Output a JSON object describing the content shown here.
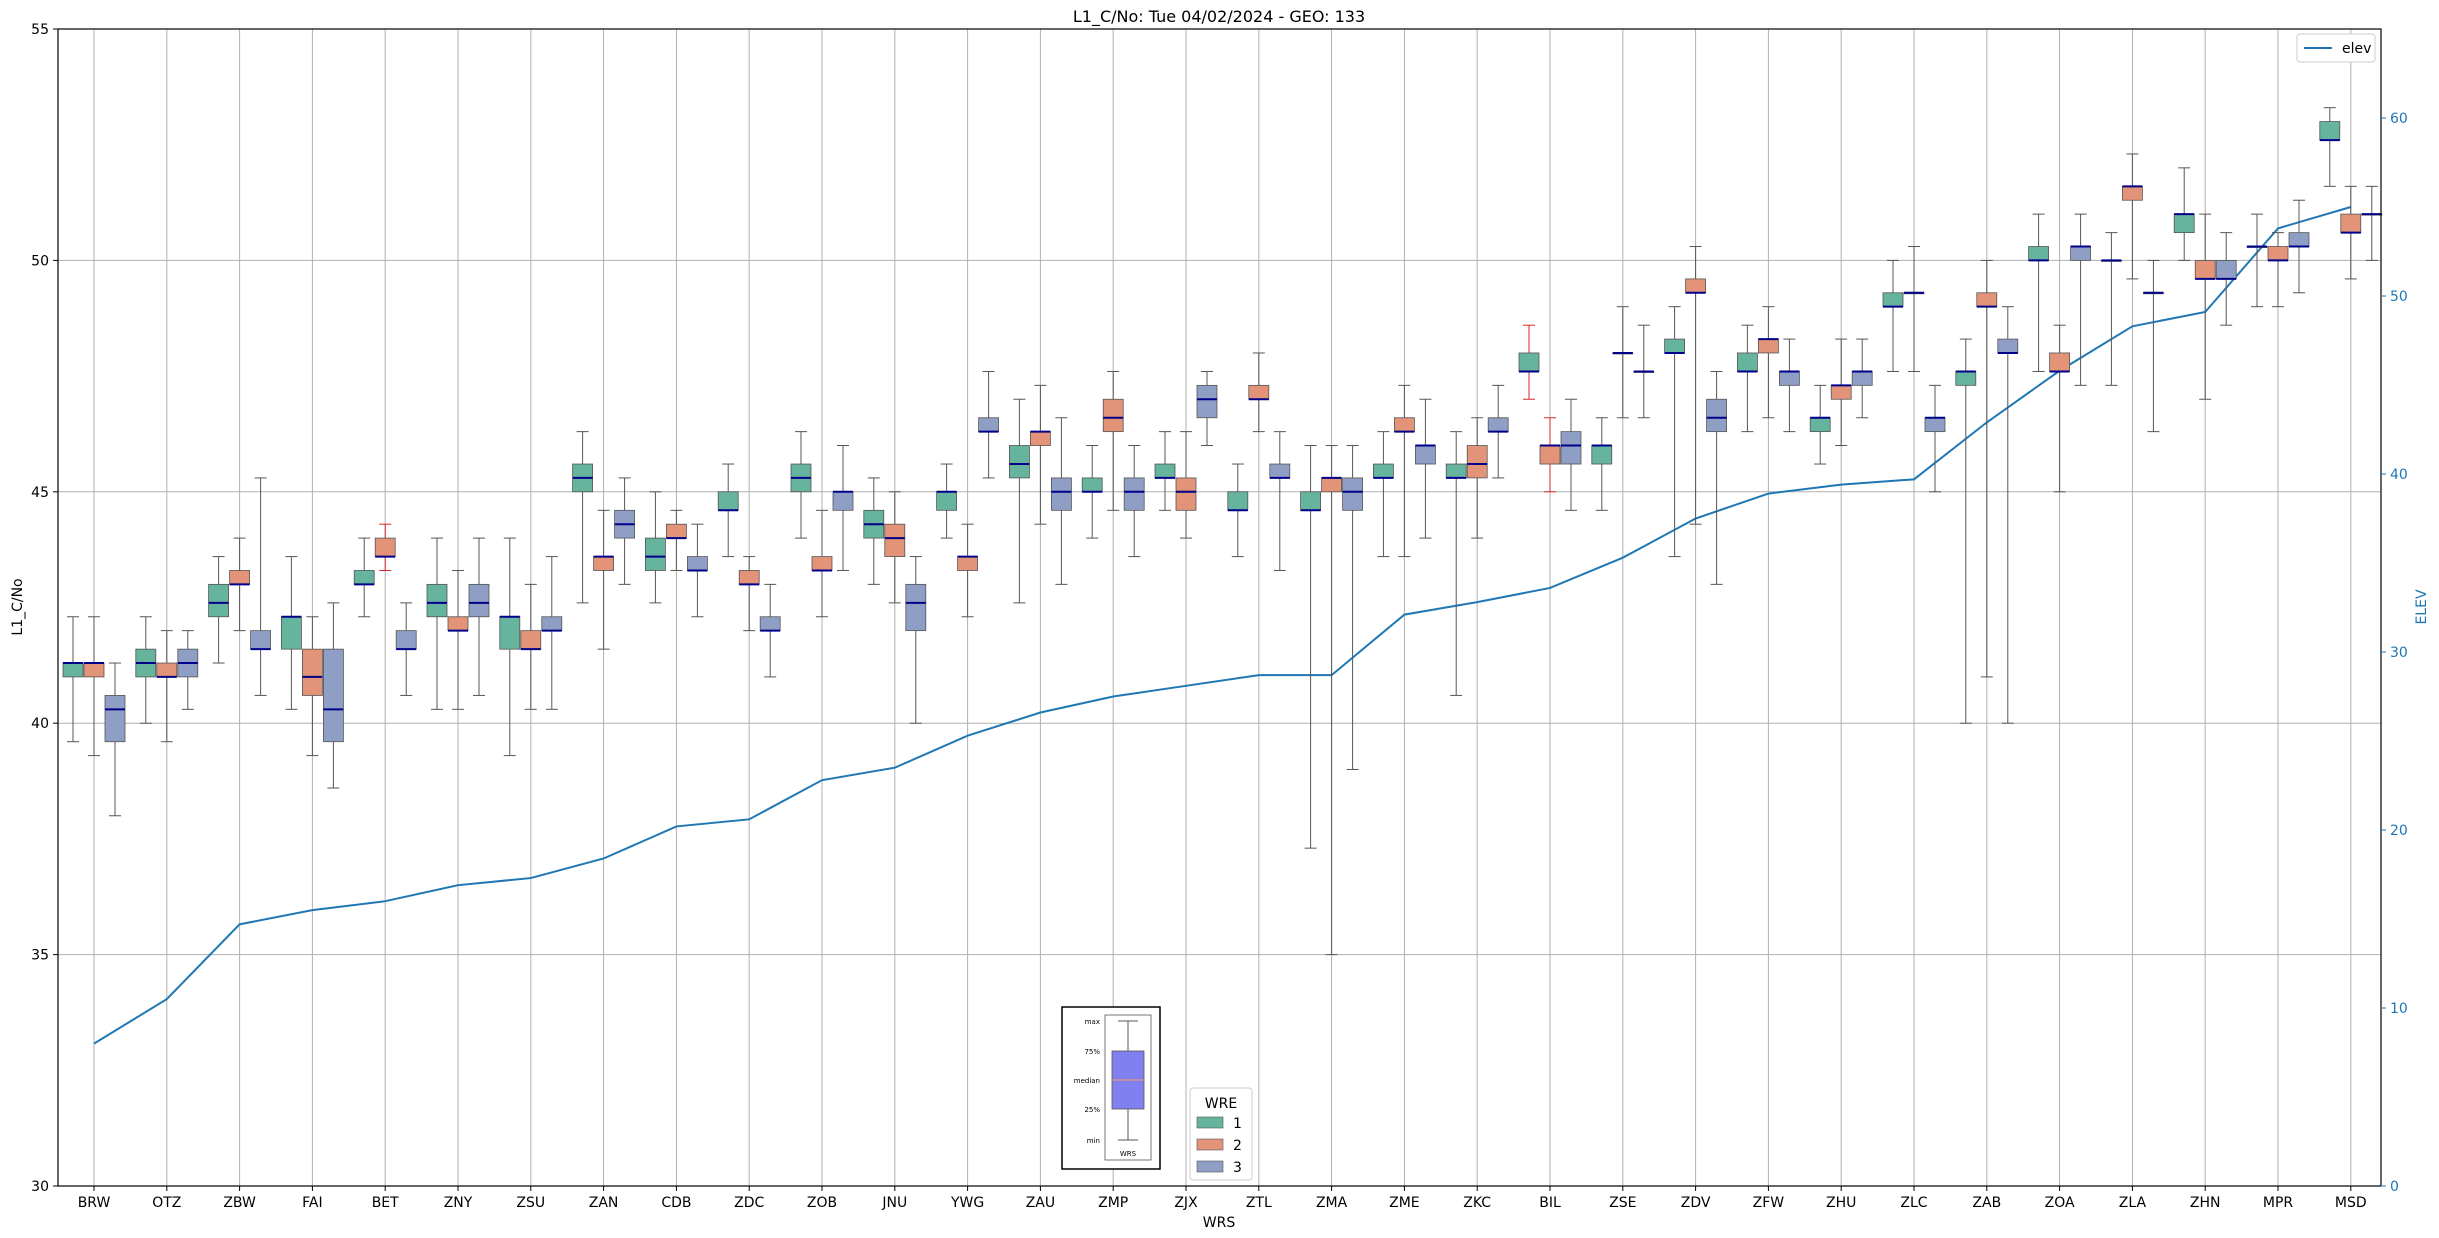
{
  "chart_data": {
    "type": "box",
    "title": "L1_C/No: Tue 04/02/2024 - GEO: 133",
    "xlabel": "WRS",
    "ylabel": "L1_C/No",
    "y2label": "ELEV",
    "ylim": [
      30,
      55
    ],
    "y2lim": [
      0,
      65
    ],
    "yticks": [
      30,
      35,
      40,
      45,
      50,
      55
    ],
    "y2ticks": [
      0,
      10,
      20,
      30,
      40,
      50,
      60
    ],
    "grid": true,
    "colors": {
      "1": "#66b39e",
      "2": "#e39378",
      "3": "#8f9ec4",
      "elev": "#1f77b4",
      "median": "#00008b"
    },
    "legend_elev": {
      "label": "elev",
      "placement": "top-right"
    },
    "legend_wre": {
      "title": "WRE",
      "entries": [
        "1",
        "2",
        "3"
      ],
      "placement": "bottom-center"
    },
    "key_box": {
      "labels": [
        "max",
        "75%",
        "median",
        "25%",
        "min"
      ],
      "xlabel": "WRS"
    },
    "categories": [
      "BRW",
      "OTZ",
      "ZBW",
      "FAI",
      "BET",
      "ZNY",
      "ZSU",
      "ZAN",
      "CDB",
      "ZDC",
      "ZOB",
      "JNU",
      "YWG",
      "ZAU",
      "ZMP",
      "ZJX",
      "ZTL",
      "ZMA",
      "ZME",
      "ZKC",
      "BIL",
      "ZSE",
      "ZDV",
      "ZFW",
      "ZHU",
      "ZLC",
      "ZAB",
      "ZOA",
      "ZLA",
      "ZHN",
      "MPR",
      "MSD"
    ],
    "elev": [
      8,
      10.5,
      14.7,
      15.5,
      16,
      16.9,
      17.3,
      18.4,
      20.2,
      20.6,
      22.8,
      23.5,
      25.3,
      26.6,
      27.5,
      28.1,
      28.7,
      28.7,
      32.1,
      32.8,
      33.6,
      35.3,
      37.5,
      38.9,
      39.4,
      39.7,
      42.9,
      45.8,
      48.3,
      49.1,
      53.8,
      55
    ],
    "boxes": [
      [
        [
          39.6,
          41.0,
          41.3,
          41.3,
          42.3
        ],
        [
          39.3,
          41.0,
          41.3,
          41.3,
          42.3
        ],
        [
          38.0,
          39.6,
          40.3,
          40.6,
          41.3
        ]
      ],
      [
        [
          40.0,
          41.0,
          41.3,
          41.6,
          42.3
        ],
        [
          39.6,
          41.0,
          41.0,
          41.3,
          42.0
        ],
        [
          40.3,
          41.0,
          41.3,
          41.6,
          42.0
        ]
      ],
      [
        [
          41.3,
          42.3,
          42.6,
          43.0,
          43.6
        ],
        [
          42.0,
          43.0,
          43.0,
          43.3,
          44.0
        ],
        [
          40.6,
          41.6,
          41.6,
          42.0,
          45.3
        ]
      ],
      [
        [
          40.3,
          41.6,
          42.3,
          42.3,
          43.6
        ],
        [
          39.3,
          40.6,
          41.0,
          41.6,
          42.3
        ],
        [
          38.6,
          39.6,
          40.3,
          41.6,
          42.6
        ]
      ],
      [
        [
          42.3,
          43.0,
          43.0,
          43.3,
          44.0
        ],
        [
          43.3,
          43.6,
          43.6,
          44.0,
          44.3
        ],
        [
          40.6,
          41.6,
          41.6,
          42.0,
          42.6
        ]
      ],
      [
        [
          40.3,
          42.3,
          42.6,
          43.0,
          44.0
        ],
        [
          40.3,
          42.0,
          42.0,
          42.3,
          43.3
        ],
        [
          40.6,
          42.3,
          42.6,
          43.0,
          44.0
        ]
      ],
      [
        [
          39.3,
          41.6,
          42.3,
          42.3,
          44.0
        ],
        [
          40.3,
          41.6,
          41.6,
          42.0,
          43.0
        ],
        [
          40.3,
          42.0,
          42.0,
          42.3,
          43.6
        ]
      ],
      [
        [
          42.6,
          45.0,
          45.3,
          45.6,
          46.3
        ],
        [
          41.6,
          43.3,
          43.6,
          43.6,
          44.6
        ],
        [
          43.0,
          44.0,
          44.3,
          44.6,
          45.3
        ]
      ],
      [
        [
          42.6,
          43.3,
          43.6,
          44.0,
          45.0
        ],
        [
          43.3,
          44.0,
          44.0,
          44.3,
          44.6
        ],
        [
          42.3,
          43.3,
          43.3,
          43.6,
          44.3
        ]
      ],
      [
        [
          43.6,
          44.6,
          44.6,
          45.0,
          45.6
        ],
        [
          42.0,
          43.0,
          43.0,
          43.3,
          43.6
        ],
        [
          41.0,
          42.0,
          42.0,
          42.3,
          43.0
        ]
      ],
      [
        [
          44.0,
          45.0,
          45.3,
          45.6,
          46.3
        ],
        [
          42.3,
          43.3,
          43.3,
          43.6,
          44.6
        ],
        [
          43.3,
          44.6,
          45.0,
          45.0,
          46.0
        ]
      ],
      [
        [
          43.0,
          44.0,
          44.3,
          44.6,
          45.3
        ],
        [
          42.6,
          43.6,
          44.0,
          44.3,
          45.0
        ],
        [
          40.0,
          42.0,
          42.6,
          43.0,
          43.6
        ]
      ],
      [
        [
          44.0,
          44.6,
          45.0,
          45.0,
          45.6
        ],
        [
          42.3,
          43.3,
          43.6,
          43.6,
          44.3
        ],
        [
          45.3,
          46.3,
          46.3,
          46.6,
          47.6
        ]
      ],
      [
        [
          42.6,
          45.3,
          45.6,
          46.0,
          47.0
        ],
        [
          44.3,
          46.0,
          46.3,
          46.3,
          47.3
        ],
        [
          43.0,
          44.6,
          45.0,
          45.3,
          46.6
        ]
      ],
      [
        [
          44.0,
          45.0,
          45.0,
          45.3,
          46.0
        ],
        [
          44.6,
          46.3,
          46.6,
          47.0,
          47.6
        ],
        [
          43.6,
          44.6,
          45.0,
          45.3,
          46.0
        ]
      ],
      [
        [
          44.6,
          45.3,
          45.3,
          45.6,
          46.3
        ],
        [
          44.0,
          44.6,
          45.0,
          45.3,
          46.3
        ],
        [
          46.0,
          46.6,
          47.0,
          47.3,
          47.6
        ]
      ],
      [
        [
          43.6,
          44.6,
          44.6,
          45.0,
          45.6
        ],
        [
          46.3,
          47.0,
          47.0,
          47.3,
          48.0
        ],
        [
          43.3,
          45.3,
          45.3,
          45.6,
          46.3
        ]
      ],
      [
        [
          37.3,
          44.6,
          44.6,
          45.0,
          46.0
        ],
        [
          35.0,
          45.0,
          45.3,
          45.3,
          46.0
        ],
        [
          39.0,
          44.6,
          45.0,
          45.3,
          46.0
        ]
      ],
      [
        [
          43.6,
          45.3,
          45.3,
          45.6,
          46.3
        ],
        [
          43.6,
          46.3,
          46.3,
          46.6,
          47.3
        ],
        [
          44.0,
          45.6,
          46.0,
          46.0,
          47.0
        ]
      ],
      [
        [
          40.6,
          45.3,
          45.3,
          45.6,
          46.3
        ],
        [
          44.0,
          45.3,
          45.6,
          46.0,
          46.6
        ],
        [
          45.3,
          46.3,
          46.3,
          46.6,
          47.3
        ]
      ],
      [
        [
          47.0,
          47.6,
          47.6,
          48.0,
          48.6
        ],
        [
          45.0,
          45.6,
          46.0,
          46.0,
          46.6
        ],
        [
          44.6,
          45.6,
          46.0,
          46.3,
          47.0
        ]
      ],
      [
        [
          44.6,
          45.6,
          46.0,
          46.0,
          46.6
        ],
        [
          46.6,
          48.0,
          48.0,
          48.0,
          49.0
        ],
        [
          46.6,
          47.6,
          47.6,
          47.6,
          48.6
        ]
      ],
      [
        [
          43.6,
          48.0,
          48.0,
          48.3,
          49.0
        ],
        [
          44.3,
          49.3,
          49.3,
          49.6,
          50.3
        ],
        [
          43.0,
          46.3,
          46.6,
          47.0,
          47.6
        ]
      ],
      [
        [
          46.3,
          47.6,
          47.6,
          48.0,
          48.6
        ],
        [
          46.6,
          48.0,
          48.3,
          48.3,
          49.0
        ],
        [
          46.3,
          47.3,
          47.6,
          47.6,
          48.3
        ]
      ],
      [
        [
          45.6,
          46.3,
          46.6,
          46.6,
          47.3
        ],
        [
          46.0,
          47.0,
          47.3,
          47.3,
          48.3
        ],
        [
          46.6,
          47.3,
          47.6,
          47.6,
          48.3
        ]
      ],
      [
        [
          47.6,
          49.0,
          49.0,
          49.3,
          50.0
        ],
        [
          47.6,
          49.3,
          49.3,
          49.3,
          50.3
        ],
        [
          45.0,
          46.3,
          46.6,
          46.6,
          47.3
        ]
      ],
      [
        [
          40.0,
          47.3,
          47.6,
          47.6,
          48.3
        ],
        [
          41.0,
          49.0,
          49.0,
          49.3,
          50.0
        ],
        [
          40.0,
          48.0,
          48.0,
          48.3,
          49.0
        ]
      ],
      [
        [
          47.6,
          50.0,
          50.0,
          50.3,
          51.0
        ],
        [
          45.0,
          47.6,
          47.6,
          48.0,
          48.6
        ],
        [
          47.3,
          50.0,
          50.3,
          50.3,
          51.0
        ]
      ],
      [
        [
          47.3,
          50.0,
          50.0,
          50.0,
          50.6
        ],
        [
          49.6,
          51.3,
          51.6,
          51.6,
          52.3
        ],
        [
          46.3,
          49.3,
          49.3,
          49.3,
          50.0
        ]
      ],
      [
        [
          50.0,
          50.6,
          51.0,
          51.0,
          52.0
        ],
        [
          47.0,
          49.6,
          49.6,
          50.0,
          51.0
        ],
        [
          48.6,
          49.6,
          49.6,
          50.0,
          50.6
        ]
      ],
      [
        [
          49.0,
          50.3,
          50.3,
          50.3,
          51.0
        ],
        [
          49.0,
          50.0,
          50.0,
          50.3,
          50.6
        ],
        [
          49.3,
          50.3,
          50.3,
          50.6,
          51.3
        ]
      ],
      [
        [
          51.6,
          52.6,
          52.6,
          53.0,
          53.3
        ],
        [
          49.6,
          50.6,
          50.6,
          51.0,
          51.6
        ],
        [
          50.0,
          51.0,
          51.0,
          51.0,
          51.6
        ]
      ]
    ],
    "red_whiskers": [
      [
        4,
        1
      ],
      [
        20,
        0
      ],
      [
        20,
        1
      ]
    ]
  }
}
